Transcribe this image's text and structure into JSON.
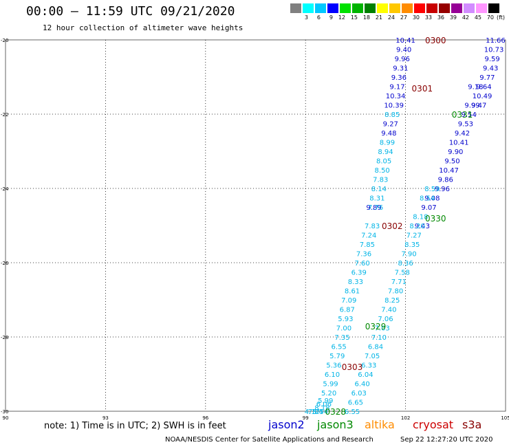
{
  "header": {
    "title": "00:00 – 11:59 UTC 09/21/2020",
    "subtitle": "12 hour collection of altimeter wave heights"
  },
  "scale": {
    "unit": "(ft)",
    "colors": [
      "#808080",
      "#00ffff",
      "#00c8ff",
      "#0000ff",
      "#00e100",
      "#00b400",
      "#008000",
      "#ffff00",
      "#ffc800",
      "#ff8c00",
      "#ff0000",
      "#c80000",
      "#960000",
      "#960096",
      "#d28cff",
      "#ff96ff",
      "#000000"
    ],
    "labels": [
      "3",
      "6",
      "9",
      "12",
      "15",
      "18",
      "21",
      "24",
      "27",
      "30",
      "33",
      "36",
      "39",
      "42",
      "45",
      "70"
    ]
  },
  "footer": {
    "note": "note:  1) Time is in UTC;  2) SWH is in feet",
    "satellites": [
      {
        "name": "jason2",
        "color": "#0000cc"
      },
      {
        "name": "jason3",
        "color": "#008800"
      },
      {
        "name": "altika",
        "color": "#ff8c00"
      },
      {
        "name": "cryosat",
        "color": "#cc0000"
      },
      {
        "name": "s3a",
        "color": "#880000"
      }
    ],
    "credit": "NOAA/NESDIS Center for Satellite Applications and Research",
    "timestamp": "Sep 22 12:27:20 UTC 2020"
  },
  "chart_data": {
    "type": "scatter",
    "xlim": [
      90,
      105
    ],
    "ylim": [
      -30,
      -20
    ],
    "x_ticks": [
      "90",
      "93",
      "96",
      "99",
      "102",
      "105"
    ],
    "y_ticks": [
      "-20",
      "-22",
      "-24",
      "-26",
      "-28",
      "-30"
    ],
    "grid": true,
    "pass_labels": [
      {
        "text": "0300",
        "x": 102.9,
        "y": -20.0,
        "color": "#880000"
      },
      {
        "text": "0301",
        "x": 102.5,
        "y": -21.3,
        "color": "#880000"
      },
      {
        "text": "0331",
        "x": 103.7,
        "y": -22.0,
        "color": "#008800"
      },
      {
        "text": "0330",
        "x": 102.9,
        "y": -24.8,
        "color": "#008800"
      },
      {
        "text": "0302",
        "x": 101.6,
        "y": -25.0,
        "color": "#880000"
      },
      {
        "text": "0329",
        "x": 101.1,
        "y": -27.7,
        "color": "#008800"
      },
      {
        "text": "0303",
        "x": 100.4,
        "y": -28.8,
        "color": "#880000"
      },
      {
        "text": "0328",
        "x": 99.9,
        "y": -30.0,
        "color": "#008800"
      }
    ],
    "series": [
      {
        "color": "#0000cc",
        "points": [
          {
            "x": 102.0,
            "y": -20.0,
            "v": "10.41"
          },
          {
            "x": 101.95,
            "y": -20.25,
            "v": "9.40"
          },
          {
            "x": 101.9,
            "y": -20.5,
            "v": "9.96"
          },
          {
            "x": 101.85,
            "y": -20.75,
            "v": "9.31"
          },
          {
            "x": 101.8,
            "y": -21.0,
            "v": "9.36"
          },
          {
            "x": 101.75,
            "y": -21.25,
            "v": "9.17"
          },
          {
            "x": 101.7,
            "y": -21.5,
            "v": "10.34"
          },
          {
            "x": 101.65,
            "y": -21.75,
            "v": "10.39"
          },
          {
            "x": 101.55,
            "y": -22.25,
            "v": "9.27"
          },
          {
            "x": 101.5,
            "y": -22.5,
            "v": "9.48"
          },
          {
            "x": 101.05,
            "y": -24.5,
            "v": "9.89"
          },
          {
            "x": 104.7,
            "y": -20.0,
            "v": "11.66"
          },
          {
            "x": 104.65,
            "y": -20.25,
            "v": "10.73"
          },
          {
            "x": 104.6,
            "y": -20.5,
            "v": "9.59"
          },
          {
            "x": 104.55,
            "y": -20.75,
            "v": "9.43"
          },
          {
            "x": 104.45,
            "y": -21.0,
            "v": "9.77"
          },
          {
            "x": 104.35,
            "y": -21.25,
            "v": "9.64"
          },
          {
            "x": 104.3,
            "y": -21.5,
            "v": "10.49"
          },
          {
            "x": 104.2,
            "y": -21.75,
            "v": "9.47"
          },
          {
            "x": 104.1,
            "y": -21.25,
            "v": "9.18"
          },
          {
            "x": 103.9,
            "y": -22.0,
            "v": "9.54"
          },
          {
            "x": 103.8,
            "y": -22.25,
            "v": "9.53"
          },
          {
            "x": 103.7,
            "y": -22.5,
            "v": "9.42"
          },
          {
            "x": 103.6,
            "y": -22.75,
            "v": "10.41"
          },
          {
            "x": 103.5,
            "y": -23.0,
            "v": "9.90"
          },
          {
            "x": 103.4,
            "y": -23.25,
            "v": "9.50"
          },
          {
            "x": 103.3,
            "y": -23.5,
            "v": "10.47"
          },
          {
            "x": 103.2,
            "y": -23.75,
            "v": "9.86"
          },
          {
            "x": 103.1,
            "y": -24.0,
            "v": "9.96"
          },
          {
            "x": 102.8,
            "y": -24.25,
            "v": "9.08"
          },
          {
            "x": 102.7,
            "y": -24.5,
            "v": "9.07"
          },
          {
            "x": 102.5,
            "y": -25.0,
            "v": "9.43"
          },
          {
            "x": 104.0,
            "y": -21.75,
            "v": "9.99"
          }
        ]
      },
      {
        "color": "#00b4e6",
        "points": [
          {
            "x": 101.6,
            "y": -22.0,
            "v": "8.85"
          },
          {
            "x": 101.45,
            "y": -22.75,
            "v": "8.99"
          },
          {
            "x": 101.4,
            "y": -23.0,
            "v": "8.94"
          },
          {
            "x": 101.35,
            "y": -23.25,
            "v": "8.05"
          },
          {
            "x": 101.3,
            "y": -23.5,
            "v": "8.50"
          },
          {
            "x": 101.25,
            "y": -23.75,
            "v": "7.83"
          },
          {
            "x": 101.2,
            "y": -24.0,
            "v": "8.14"
          },
          {
            "x": 101.15,
            "y": -24.25,
            "v": "8.31"
          },
          {
            "x": 101.1,
            "y": -24.5,
            "v": "7.76"
          },
          {
            "x": 101.0,
            "y": -25.0,
            "v": "7.83"
          },
          {
            "x": 100.9,
            "y": -25.25,
            "v": "7.24"
          },
          {
            "x": 100.85,
            "y": -25.5,
            "v": "7.85"
          },
          {
            "x": 100.75,
            "y": -25.75,
            "v": "7.36"
          },
          {
            "x": 100.7,
            "y": -26.0,
            "v": "7.60"
          },
          {
            "x": 100.6,
            "y": -26.25,
            "v": "6.39"
          },
          {
            "x": 100.5,
            "y": -26.5,
            "v": "8.33"
          },
          {
            "x": 100.4,
            "y": -26.75,
            "v": "8.61"
          },
          {
            "x": 100.3,
            "y": -27.0,
            "v": "7.09"
          },
          {
            "x": 100.25,
            "y": -27.25,
            "v": "6.87"
          },
          {
            "x": 100.2,
            "y": -27.5,
            "v": "5.93"
          },
          {
            "x": 100.15,
            "y": -27.75,
            "v": "7.00"
          },
          {
            "x": 100.1,
            "y": -28.0,
            "v": "7.35"
          },
          {
            "x": 100.0,
            "y": -28.25,
            "v": "6.55"
          },
          {
            "x": 99.95,
            "y": -28.5,
            "v": "5.79"
          },
          {
            "x": 99.85,
            "y": -28.75,
            "v": "5.36"
          },
          {
            "x": 99.8,
            "y": -29.0,
            "v": "6.10"
          },
          {
            "x": 99.75,
            "y": -29.25,
            "v": "5.99"
          },
          {
            "x": 99.7,
            "y": -29.5,
            "v": "5.20"
          },
          {
            "x": 99.6,
            "y": -29.7,
            "v": "5.99"
          },
          {
            "x": 99.55,
            "y": -29.8,
            "v": "6.06"
          },
          {
            "x": 99.5,
            "y": -29.9,
            "v": "8.18"
          },
          {
            "x": 99.45,
            "y": -30.0,
            "v": "5.54"
          },
          {
            "x": 99.3,
            "y": -30.0,
            "v": "7.04"
          },
          {
            "x": 99.2,
            "y": -30.0,
            "v": "4.17"
          },
          {
            "x": 102.8,
            "y": -24.0,
            "v": "8.59"
          },
          {
            "x": 102.65,
            "y": -24.25,
            "v": "8.54"
          },
          {
            "x": 102.45,
            "y": -24.75,
            "v": "8.18"
          },
          {
            "x": 102.35,
            "y": -25.0,
            "v": "8.20"
          },
          {
            "x": 102.25,
            "y": -25.25,
            "v": "7.27"
          },
          {
            "x": 102.2,
            "y": -25.5,
            "v": "8.35"
          },
          {
            "x": 102.1,
            "y": -25.75,
            "v": "7.90"
          },
          {
            "x": 102.0,
            "y": -26.0,
            "v": "8.36"
          },
          {
            "x": 101.9,
            "y": -26.25,
            "v": "7.58"
          },
          {
            "x": 101.8,
            "y": -26.5,
            "v": "7.71"
          },
          {
            "x": 101.7,
            "y": -26.75,
            "v": "7.80"
          },
          {
            "x": 101.6,
            "y": -27.0,
            "v": "8.25"
          },
          {
            "x": 101.5,
            "y": -27.25,
            "v": "7.40"
          },
          {
            "x": 101.4,
            "y": -27.5,
            "v": "7.06"
          },
          {
            "x": 101.3,
            "y": -27.75,
            "v": "7.03"
          },
          {
            "x": 101.2,
            "y": -28.0,
            "v": "7.10"
          },
          {
            "x": 101.1,
            "y": -28.25,
            "v": "6.84"
          },
          {
            "x": 101.0,
            "y": -28.5,
            "v": "7.05"
          },
          {
            "x": 100.9,
            "y": -28.75,
            "v": "6.33"
          },
          {
            "x": 100.8,
            "y": -29.0,
            "v": "6.04"
          },
          {
            "x": 100.7,
            "y": -29.25,
            "v": "6.40"
          },
          {
            "x": 100.6,
            "y": -29.5,
            "v": "6.03"
          },
          {
            "x": 100.5,
            "y": -29.75,
            "v": "6.65"
          },
          {
            "x": 100.4,
            "y": -30.0,
            "v": "6.55"
          }
        ]
      }
    ]
  }
}
